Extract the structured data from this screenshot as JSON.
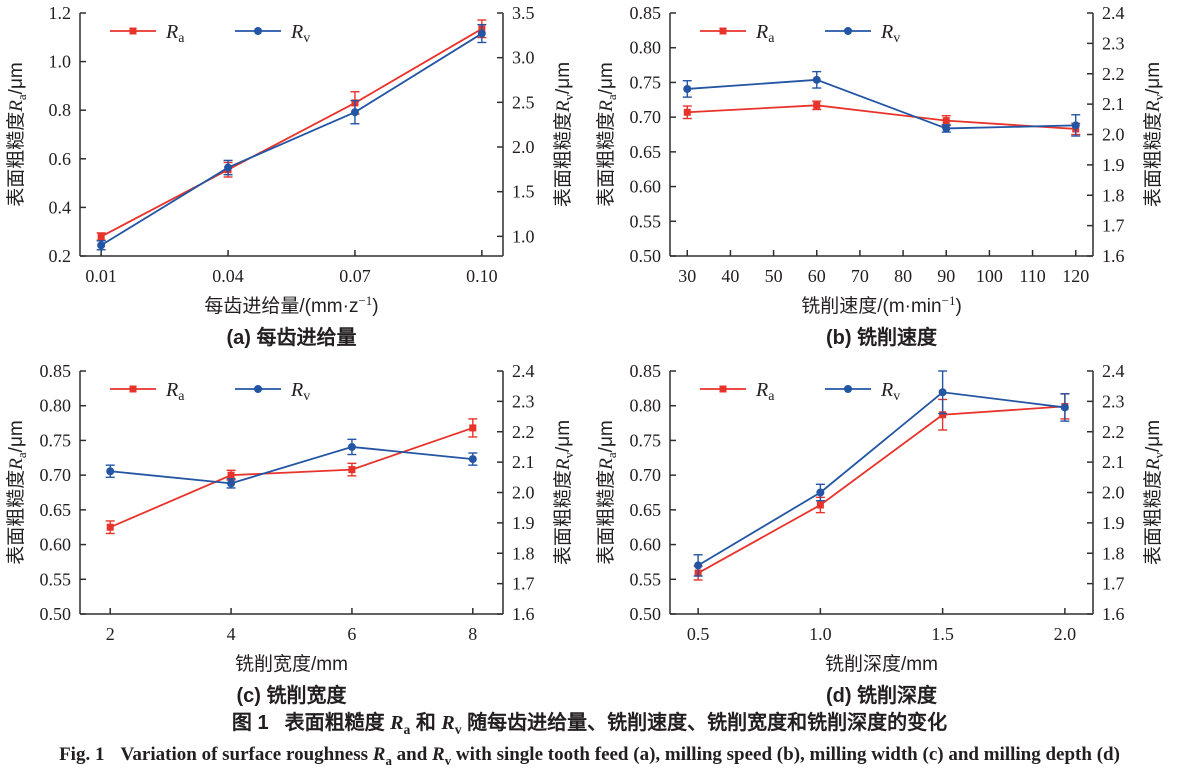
{
  "colors": {
    "ra": "#e8332a",
    "rv": "#2355a4",
    "axis": "#2f2f2f",
    "text": "#231f20"
  },
  "legend": {
    "ra": {
      "sym": "R",
      "sub": "a"
    },
    "rv": {
      "sym": "R",
      "sub": "v"
    }
  },
  "captions": {
    "cn": {
      "fig": "图 1",
      "p1": "表面粗糙度 ",
      "mid": " 和 ",
      "p2": " 随每齿进给量、铣削速度、铣削宽度和铣削深度的变化"
    },
    "en": {
      "fig": "Fig. 1",
      "p1": "Variation of surface roughness ",
      "mid": " and ",
      "p2": " with single tooth feed (a), milling speed (b), milling width (c) and milling depth (d)"
    },
    "sym": "R",
    "sub_a": "a",
    "sub_v": "v"
  },
  "chart_data": [
    {
      "id": "a",
      "type": "line",
      "caption": "(a) 每齿进给量",
      "xlabel": {
        "pre": "每齿进给量/(mm·z",
        "sup": "−1",
        "post": ")"
      },
      "x_range": [
        0.005,
        0.105
      ],
      "x_tick_values": [
        0.01,
        0.04,
        0.07,
        0.1
      ],
      "x_tick_labels": [
        "0.01",
        "0.04",
        "0.07",
        "0.10"
      ],
      "left_axis": {
        "min": 0.2,
        "max": 1.2,
        "ticks": [
          0.2,
          0.4,
          0.6,
          0.8,
          1.0,
          1.2
        ],
        "decimals": 1,
        "label": {
          "pre": "表面粗糙度",
          "sym": "R",
          "sub": "a",
          "post": "/μm"
        }
      },
      "right_axis": {
        "min": 0.78,
        "max": 3.5,
        "ticks": [
          1.0,
          1.5,
          2.0,
          2.5,
          3.0,
          3.5
        ],
        "decimals": 1,
        "label": {
          "pre": "表面粗糙度",
          "sym": "R",
          "sub": "v",
          "post": "/μm"
        }
      },
      "x": [
        0.01,
        0.04,
        0.07,
        0.1
      ],
      "series": [
        {
          "key": "ra",
          "axis": "left",
          "values": [
            0.28,
            0.555,
            0.83,
            1.135
          ],
          "errors": [
            0.015,
            0.03,
            0.046,
            0.036
          ]
        },
        {
          "key": "rv",
          "axis": "right",
          "values": [
            0.9,
            1.77,
            2.39,
            3.27
          ],
          "errors": [
            0.05,
            0.08,
            0.13,
            0.1
          ]
        }
      ]
    },
    {
      "id": "b",
      "type": "line",
      "caption": "(b) 铣削速度",
      "xlabel": {
        "pre": "铣削速度/(m·min",
        "sup": "−1",
        "post": ")"
      },
      "x_range": [
        26,
        124
      ],
      "x_tick_values": [
        30,
        40,
        50,
        60,
        70,
        80,
        90,
        100,
        110,
        120
      ],
      "x_tick_labels": [
        "30",
        "40",
        "50",
        "60",
        "70",
        "80",
        "90",
        "100",
        "110",
        "120"
      ],
      "left_axis": {
        "min": 0.5,
        "max": 0.85,
        "ticks": [
          0.5,
          0.55,
          0.6,
          0.65,
          0.7,
          0.75,
          0.8,
          0.85
        ],
        "decimals": 2,
        "label": {
          "pre": "表面粗糙度",
          "sym": "R",
          "sub": "a",
          "post": "/μm"
        }
      },
      "right_axis": {
        "min": 1.6,
        "max": 2.4,
        "ticks": [
          1.6,
          1.7,
          1.8,
          1.9,
          2.0,
          2.1,
          2.2,
          2.3,
          2.4
        ],
        "decimals": 1,
        "label": {
          "pre": "表面粗糙度",
          "sym": "R",
          "sub": "v",
          "post": "/μm"
        }
      },
      "x": [
        30,
        60,
        90,
        120
      ],
      "series": [
        {
          "key": "ra",
          "axis": "left",
          "values": [
            0.707,
            0.717,
            0.695,
            0.683
          ],
          "errors": [
            0.009,
            0.006,
            0.007,
            0.008
          ]
        },
        {
          "key": "rv",
          "axis": "right",
          "values": [
            2.15,
            2.18,
            2.02,
            2.03
          ],
          "errors": [
            0.027,
            0.027,
            0.012,
            0.035
          ]
        }
      ]
    },
    {
      "id": "c",
      "type": "line",
      "caption": "(c) 铣削宽度",
      "xlabel": {
        "pre": "铣削宽度/mm",
        "sup": "",
        "post": ""
      },
      "x_range": [
        1.5,
        8.5
      ],
      "x_tick_values": [
        2,
        4,
        6,
        8
      ],
      "x_tick_labels": [
        "2",
        "4",
        "6",
        "8"
      ],
      "left_axis": {
        "min": 0.5,
        "max": 0.85,
        "ticks": [
          0.5,
          0.55,
          0.6,
          0.65,
          0.7,
          0.75,
          0.8,
          0.85
        ],
        "decimals": 2,
        "label": {
          "pre": "表面粗糙度",
          "sym": "R",
          "sub": "a",
          "post": "/μm"
        }
      },
      "right_axis": {
        "min": 1.6,
        "max": 2.4,
        "ticks": [
          1.6,
          1.7,
          1.8,
          1.9,
          2.0,
          2.1,
          2.2,
          2.3,
          2.4
        ],
        "decimals": 1,
        "label": {
          "pre": "表面粗糙度",
          "sym": "R",
          "sub": "v",
          "post": "/μm"
        }
      },
      "x": [
        2,
        4,
        6,
        8
      ],
      "series": [
        {
          "key": "ra",
          "axis": "left",
          "values": [
            0.625,
            0.7,
            0.708,
            0.768
          ],
          "errors": [
            0.009,
            0.007,
            0.009,
            0.013
          ]
        },
        {
          "key": "rv",
          "axis": "right",
          "values": [
            2.07,
            2.03,
            2.15,
            2.11
          ],
          "errors": [
            0.02,
            0.015,
            0.025,
            0.02
          ]
        }
      ]
    },
    {
      "id": "d",
      "type": "line",
      "caption": "(d) 铣削深度",
      "xlabel": {
        "pre": "铣削深度/mm",
        "sup": "",
        "post": ""
      },
      "x_range": [
        0.385,
        2.115
      ],
      "x_tick_values": [
        0.5,
        1.0,
        1.5,
        2.0
      ],
      "x_tick_labels": [
        "0.5",
        "1.0",
        "1.5",
        "2.0"
      ],
      "left_axis": {
        "min": 0.5,
        "max": 0.85,
        "ticks": [
          0.5,
          0.55,
          0.6,
          0.65,
          0.7,
          0.75,
          0.8,
          0.85
        ],
        "decimals": 2,
        "label": {
          "pre": "表面粗糙度",
          "sym": "R",
          "sub": "a",
          "post": "/μm"
        }
      },
      "right_axis": {
        "min": 1.6,
        "max": 2.4,
        "ticks": [
          1.6,
          1.7,
          1.8,
          1.9,
          2.0,
          2.1,
          2.2,
          2.3,
          2.4
        ],
        "decimals": 1,
        "label": {
          "pre": "表面粗糙度",
          "sym": "R",
          "sub": "v",
          "post": "/μm"
        }
      },
      "x": [
        0.5,
        1.0,
        1.5,
        2.0
      ],
      "series": [
        {
          "key": "ra",
          "axis": "left",
          "values": [
            0.559,
            0.657,
            0.787,
            0.799
          ],
          "errors": [
            0.01,
            0.011,
            0.022,
            0.018
          ]
        },
        {
          "key": "rv",
          "axis": "right",
          "values": [
            1.76,
            2.0,
            2.33,
            2.28
          ],
          "errors": [
            0.035,
            0.027,
            0.07,
            0.045
          ]
        }
      ]
    }
  ]
}
